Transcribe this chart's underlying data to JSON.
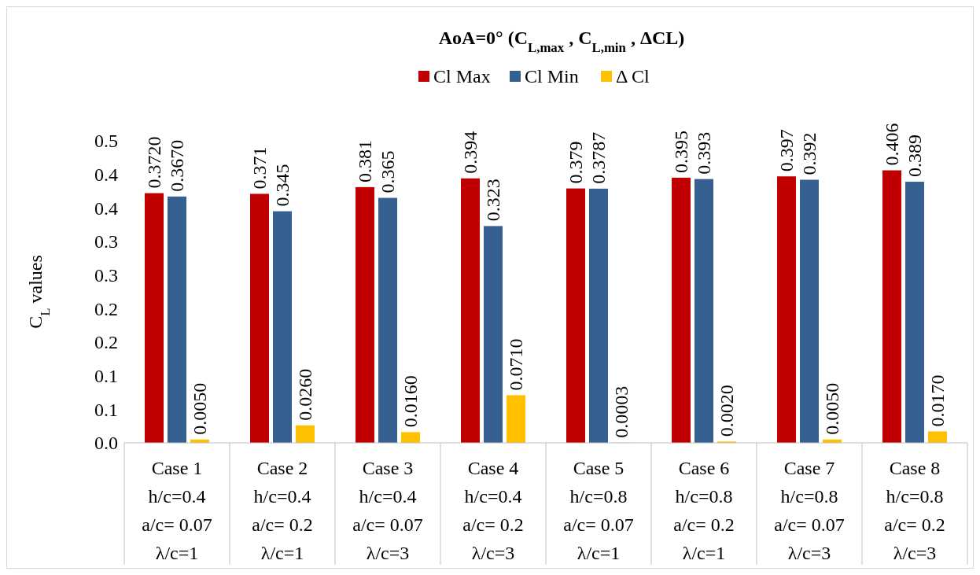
{
  "chart_data": {
    "type": "bar",
    "title": "AoA=0°  (C$_{L,max}$ , C$_{L,min}$ , ΔCL)",
    "ylabel": "C$_{L}$ values",
    "categories": [
      "Case 1\nh/c=0.4\na/c= 0.07\nλ/c=1",
      "Case 2\nh/c=0.4\na/c= 0.2\nλ/c=1",
      "Case 3\nh/c=0.4\na/c= 0.07\nλ/c=3",
      "Case 4\nh/c=0.4\na/c= 0.2\nλ/c=3",
      "Case 5\nh/c=0.8\na/c= 0.07\nλ/c=1",
      "Case 6\nh/c=0.8\na/c= 0.2\nλ/c=1",
      "Case 7\nh/c=0.8\na/c= 0.07\nλ/c=3",
      "Case 8\nh/c=0.8\na/c= 0.2\nλ/c=3"
    ],
    "series": [
      {
        "name": "Cl Max",
        "color": "#c00000",
        "values": [
          0.372,
          0.371,
          0.381,
          0.394,
          0.379,
          0.395,
          0.397,
          0.406
        ],
        "value_labels": [
          "0.3720",
          "0.371",
          "0.381",
          "0.394",
          "0.379",
          "0.395",
          "0.397",
          "0.406"
        ]
      },
      {
        "name": "Cl Min",
        "color": "#376092",
        "values": [
          0.367,
          0.345,
          0.365,
          0.323,
          0.3787,
          0.393,
          0.392,
          0.389
        ],
        "value_labels": [
          "0.3670",
          "0.345",
          "0.365",
          "0.323",
          "0.3787",
          "0.393",
          "0.392",
          "0.389"
        ]
      },
      {
        "name": "Δ Cl",
        "color": "#ffc000",
        "values": [
          0.005,
          0.026,
          0.016,
          0.071,
          0.0003,
          0.002,
          0.005,
          0.017
        ],
        "value_labels": [
          "0.0050",
          "0.0260",
          "0.0160",
          "0.0710",
          "0.0003",
          "0.0020",
          "0.0050",
          "0.0170"
        ]
      }
    ],
    "ylim": [
      0,
      0.45
    ],
    "yticks": [
      {
        "value": 0,
        "label": "0.0"
      },
      {
        "value": 0.05,
        "label": "0.1"
      },
      {
        "value": 0.1,
        "label": "0.1"
      },
      {
        "value": 0.15,
        "label": "0.2"
      },
      {
        "value": 0.2,
        "label": "0.2"
      },
      {
        "value": 0.25,
        "label": "0.3"
      },
      {
        "value": 0.3,
        "label": "0.3"
      },
      {
        "value": 0.35,
        "label": "0.4"
      },
      {
        "value": 0.4,
        "label": "0.4"
      },
      {
        "value": 0.45,
        "label": "0.5"
      }
    ],
    "legend": "top",
    "grid": false
  }
}
